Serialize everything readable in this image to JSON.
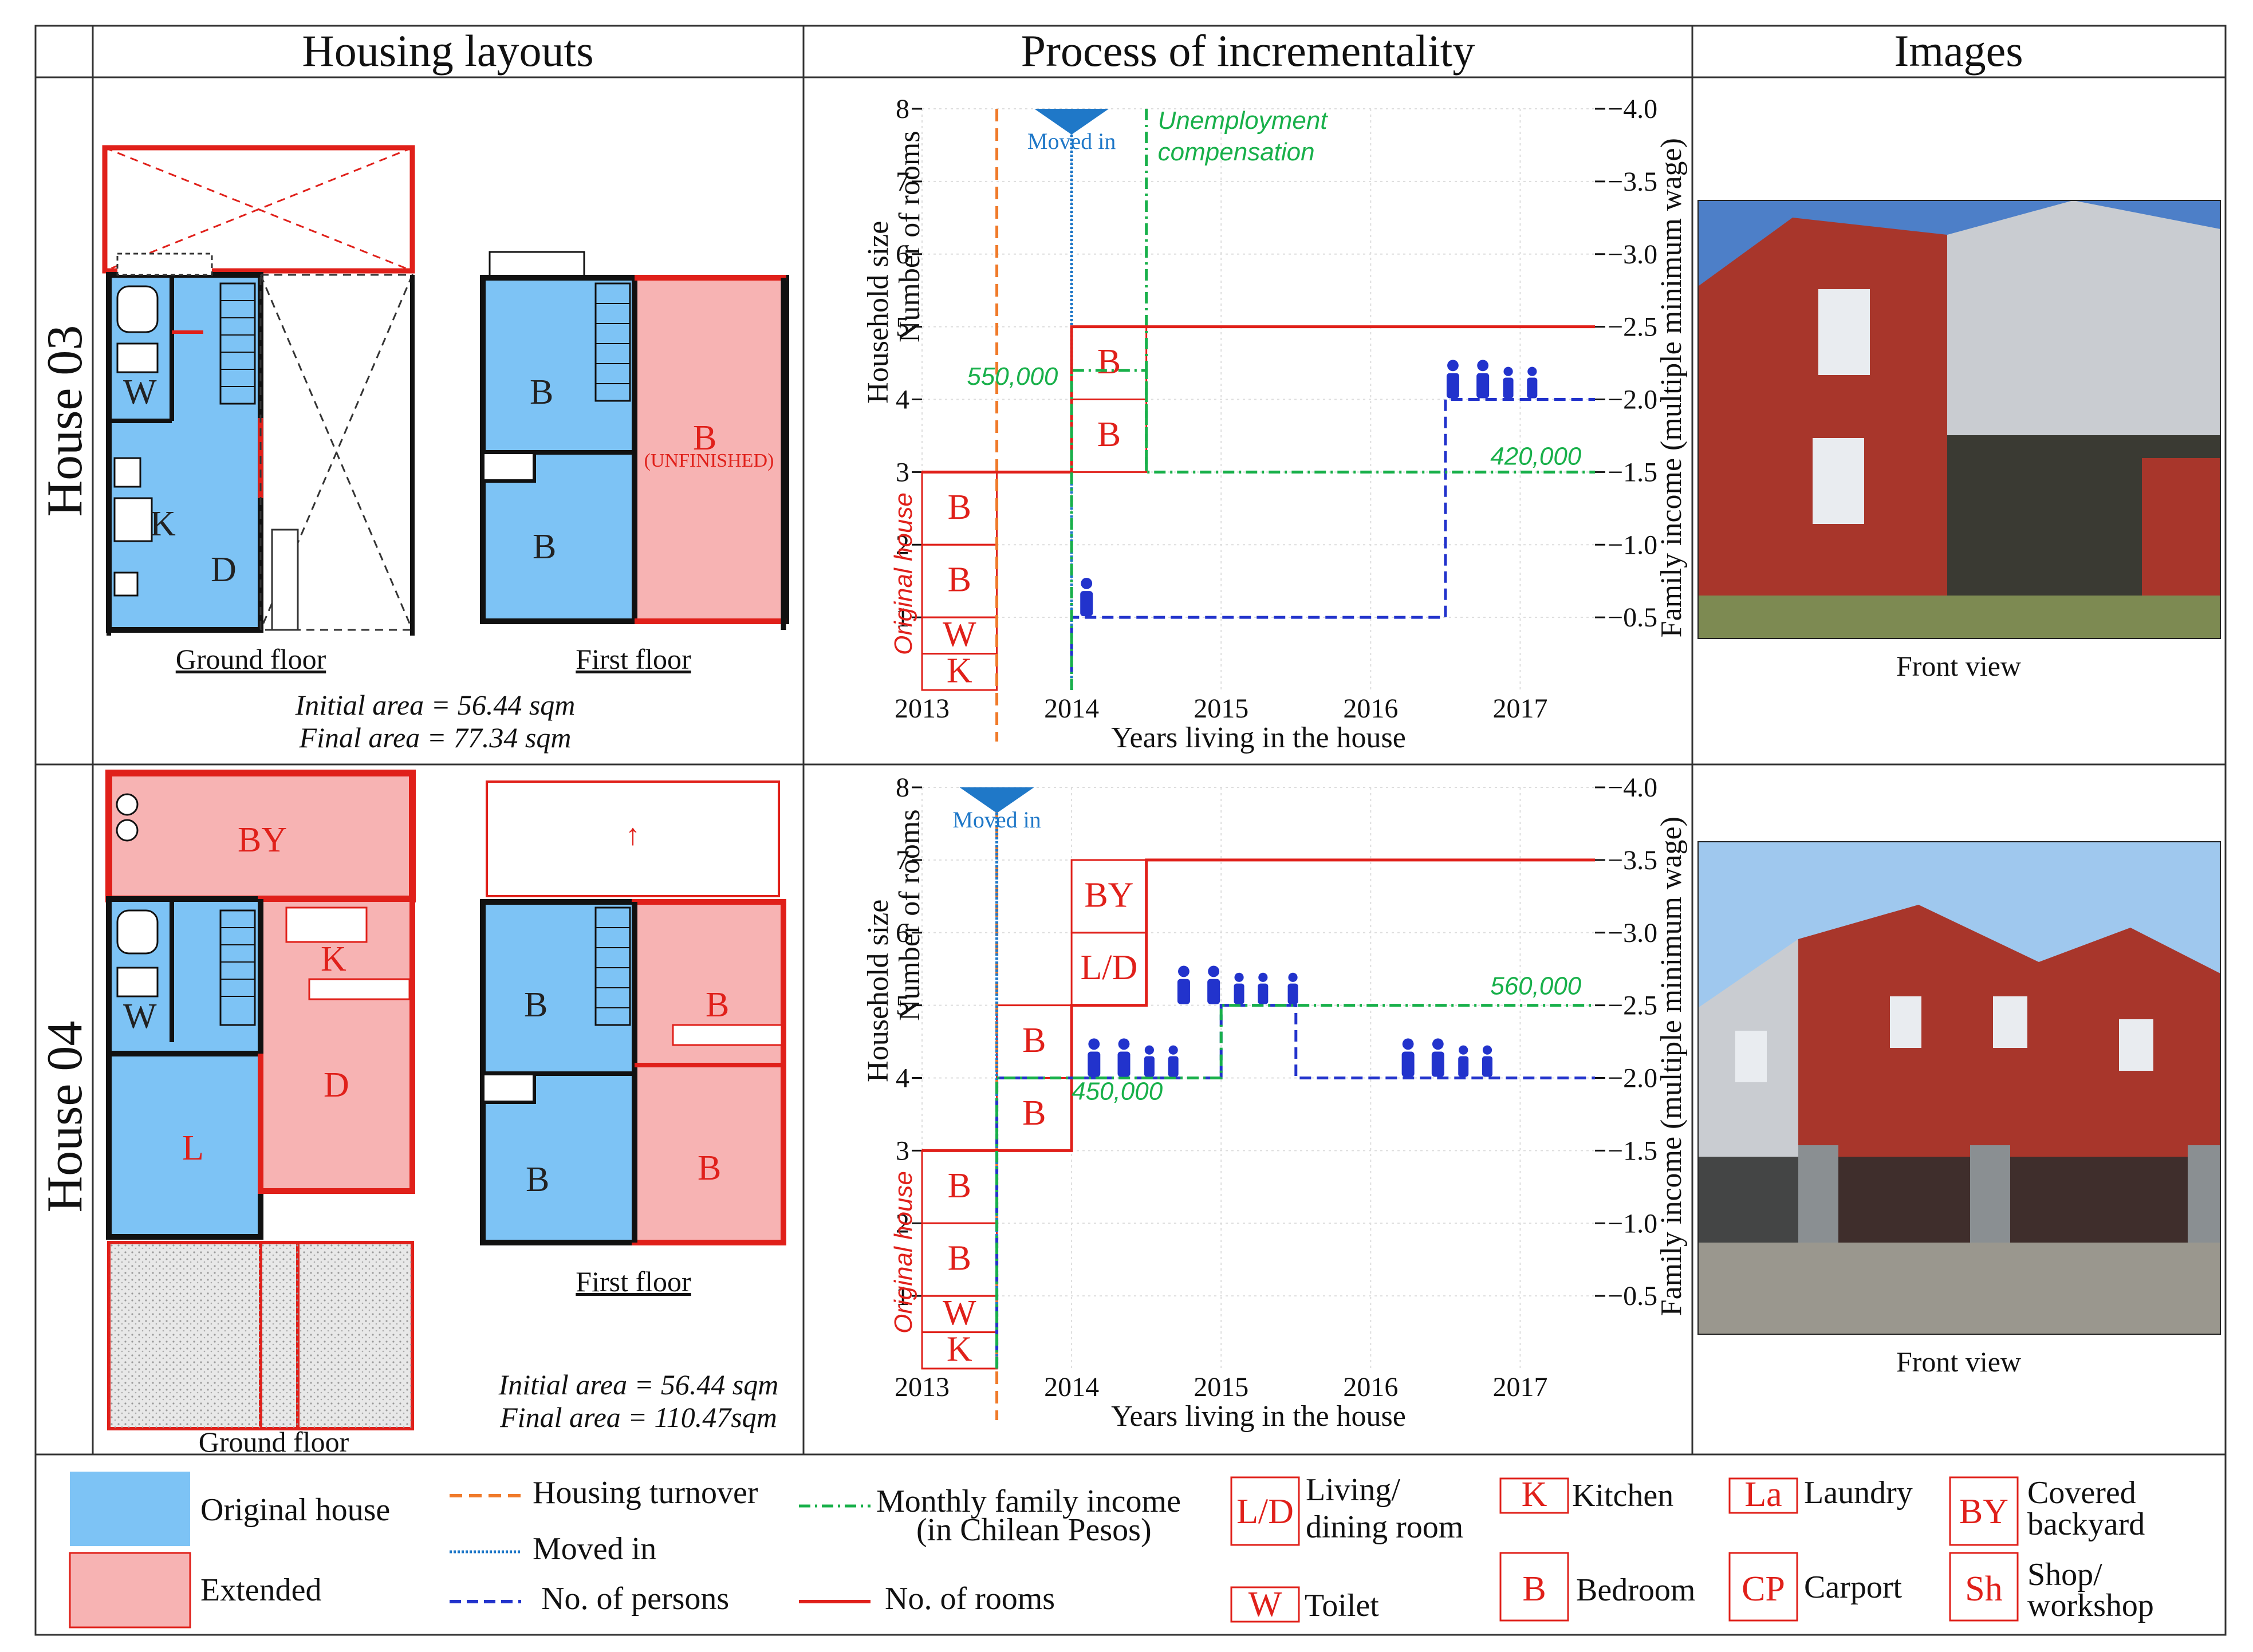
{
  "headers": {
    "layouts": "Housing layouts",
    "process": "Process of incrementality",
    "images": "Images"
  },
  "rows": [
    {
      "label": "House 03",
      "ground_floor": "Ground floor",
      "first_floor": "First floor",
      "initial_area": "Initial area = 56.44 sqm",
      "final_area": "Final area = 77.34 sqm",
      "rooms_ground": [
        "W",
        "K",
        "D"
      ],
      "rooms_first": [
        "B",
        "B",
        "B",
        "(UNFINISHED)"
      ],
      "image_caption": "Front view"
    },
    {
      "label": "House 04",
      "ground_floor": "Ground floor",
      "first_floor": "First floor",
      "initial_area": "Initial area = 56.44 sqm",
      "final_area": "Final area = 110.47sqm",
      "rooms_ground": [
        "BY",
        "W",
        "K",
        "D",
        "L"
      ],
      "rooms_first": [
        "B",
        "B",
        "B",
        "B"
      ],
      "image_caption": "Front view"
    }
  ],
  "chart_data": [
    {
      "type": "line",
      "house": "House 03",
      "xlabel": "Years living in the house",
      "ylabel_left": [
        "Household size",
        "Number of rooms"
      ],
      "ylabel_right": "Family income (multiple minimum wage)",
      "xlim": [
        2013,
        2017.5
      ],
      "ylim_left": [
        0,
        8
      ],
      "ylim_right": [
        0,
        4.0
      ],
      "xticks": [
        "2013",
        "2014",
        "2015",
        "2016",
        "2017"
      ],
      "yticks_left": [
        "1",
        "2",
        "3",
        "4",
        "5",
        "6",
        "7",
        "8"
      ],
      "yticks_right": [
        "0.5",
        "1.0",
        "1.5",
        "2.0",
        "2.5",
        "3.0",
        "3.5",
        "4.0"
      ],
      "housing_turnover_x": 2013.5,
      "moved_in_x": 2014.0,
      "moved_in_label": "Moved in",
      "annotation": "Unemployment compensation",
      "annotation_x": 2014.5,
      "original_house_label": "Original house",
      "original_rooms": [
        "K",
        "W",
        "B",
        "B"
      ],
      "added_rooms": [
        "B",
        "B"
      ],
      "series": [
        {
          "name": "No. of rooms",
          "x": [
            2013,
            2013.5,
            2014,
            2014,
            2014.5,
            2014.5,
            2017.5
          ],
          "y": [
            3,
            3,
            3,
            5,
            5,
            5,
            5
          ]
        },
        {
          "name": "No. of persons",
          "x": [
            2014,
            2014,
            2016.5,
            2016.5,
            2017.5
          ],
          "y": [
            0,
            1,
            1,
            4,
            4
          ]
        },
        {
          "name": "Monthly family income",
          "x": [
            2014,
            2014,
            2014.5,
            2014.5,
            2017.5
          ],
          "y": [
            0,
            2.2,
            2.2,
            1.5,
            1.5
          ]
        }
      ],
      "income_labels": [
        "550,000",
        "420,000"
      ],
      "persons_icons": [
        1,
        4
      ]
    },
    {
      "type": "line",
      "house": "House 04",
      "xlabel": "Years living in the house",
      "ylabel_left": [
        "Household size",
        "Number of rooms"
      ],
      "ylabel_right": "Family income (multiple minimum wage)",
      "xlim": [
        2013,
        2017.5
      ],
      "ylim_left": [
        0,
        8
      ],
      "ylim_right": [
        0,
        4.0
      ],
      "xticks": [
        "2013",
        "2014",
        "2015",
        "2016",
        "2017"
      ],
      "yticks_left": [
        "1",
        "2",
        "3",
        "4",
        "5",
        "6",
        "7",
        "8"
      ],
      "yticks_right": [
        "0.5",
        "1.0",
        "1.5",
        "2.0",
        "2.5",
        "3.0",
        "3.5",
        "4.0"
      ],
      "housing_turnover_x": 2013.5,
      "moved_in_x": 2013.5,
      "moved_in_label": "Moved in",
      "original_house_label": "Original house",
      "original_rooms": [
        "K",
        "W",
        "B",
        "B"
      ],
      "added_rooms": [
        "B",
        "B",
        "L/D",
        "BY"
      ],
      "series": [
        {
          "name": "No. of rooms",
          "x": [
            2013,
            2013.5,
            2013.5,
            2014,
            2014,
            2014.5,
            2014.5,
            2017.5
          ],
          "y": [
            3,
            3,
            3,
            3,
            5,
            5,
            7,
            7
          ]
        },
        {
          "name": "No. of persons",
          "x": [
            2013.5,
            2013.5,
            2015,
            2015,
            2015.5,
            2015.5,
            2017.5
          ],
          "y": [
            0,
            4,
            4,
            5,
            5,
            4,
            4
          ]
        },
        {
          "name": "Monthly family income",
          "x": [
            2013.5,
            2013.5,
            2015.0,
            2015.0,
            2017.5
          ],
          "y": [
            0,
            2.0,
            2.0,
            2.5,
            2.5
          ]
        }
      ],
      "income_labels": [
        "450,000",
        "560,000"
      ],
      "persons_icons": [
        4,
        5,
        4
      ]
    }
  ],
  "legend": {
    "original_house": "Original house",
    "extended": "Extended",
    "housing_turnover": "Housing turnover",
    "moved_in": "Moved in",
    "no_persons": "No. of persons",
    "monthly_income_1": "Monthly family income",
    "monthly_income_2": "(in Chilean Pesos)",
    "no_rooms": "No. of rooms",
    "ld_code": "L/D",
    "ld_1": "Living/",
    "ld_2": "dining room",
    "w_code": "W",
    "w": "Toilet",
    "k_code": "K",
    "k": "Kitchen",
    "b_code": "B",
    "b": "Bedroom",
    "la_code": "La",
    "la": "Laundry",
    "cp_code": "CP",
    "cp": "Carport",
    "by_code": "BY",
    "by_1": "Covered",
    "by_2": "backyard",
    "sh_code": "Sh",
    "sh_1": "Shop/",
    "sh_2": "workshop"
  },
  "colors": {
    "original": "#7dc3f5",
    "extended": "#f7b3b3",
    "rooms": "#e0201a",
    "persons": "#2233cc",
    "income": "#18b04a",
    "turnover": "#f07a2a",
    "moved": "#1f78c8"
  }
}
